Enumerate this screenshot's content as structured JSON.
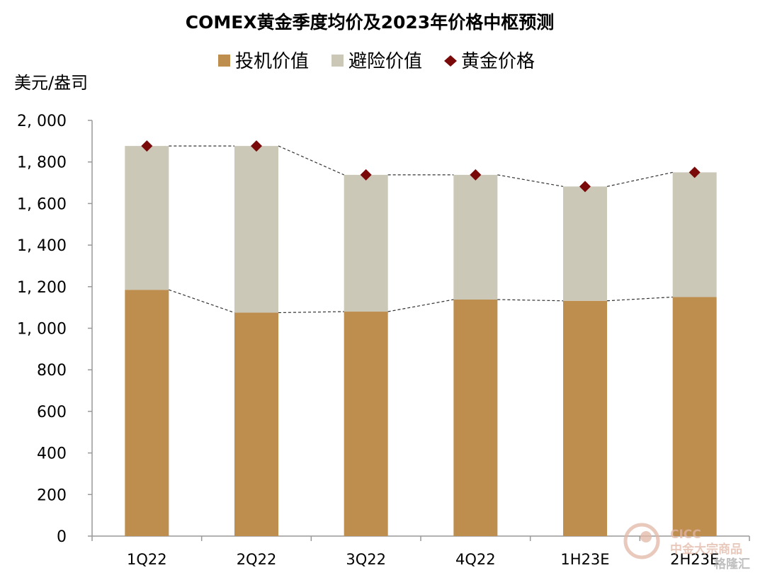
{
  "colors": {
    "speculative": "#BE8E4F",
    "safe_haven": "#CBC8B7",
    "gold_price": "#7A0A0A",
    "axis": "#999999",
    "connector": "#333333",
    "watermark": "#E2B7A6"
  },
  "chart_data": {
    "type": "bar",
    "stacked": true,
    "title": "COMEX黄金季度均价及2023年价格中枢预测",
    "ylabel": "美元/盎司",
    "xlabel": "",
    "ylim": [
      0,
      2000
    ],
    "yticks": [
      0,
      200,
      400,
      600,
      800,
      1000,
      1200,
      1400,
      1600,
      1800,
      2000
    ],
    "ytick_labels": [
      "0",
      "200",
      "400",
      "600",
      "800",
      "1, 000",
      "1, 200",
      "1, 400",
      "1, 600",
      "1, 800",
      "2, 000"
    ],
    "grid": false,
    "legend_position": "top",
    "categories": [
      "1Q22",
      "2Q22",
      "3Q22",
      "4Q22",
      "1H23E",
      "2H23E"
    ],
    "series": [
      {
        "name": "投机价值",
        "kind": "bar",
        "values": [
          1185,
          1075,
          1080,
          1138,
          1132,
          1150
        ]
      },
      {
        "name": "避险价值",
        "kind": "bar",
        "values": [
          692,
          802,
          658,
          600,
          550,
          600
        ]
      },
      {
        "name": "黄金价格",
        "kind": "marker",
        "values": [
          1877,
          1877,
          1738,
          1738,
          1682,
          1750
        ]
      }
    ]
  },
  "watermark": {
    "brand": "CICC",
    "subtitle": "中金大宗商品",
    "source": "格隆汇"
  }
}
